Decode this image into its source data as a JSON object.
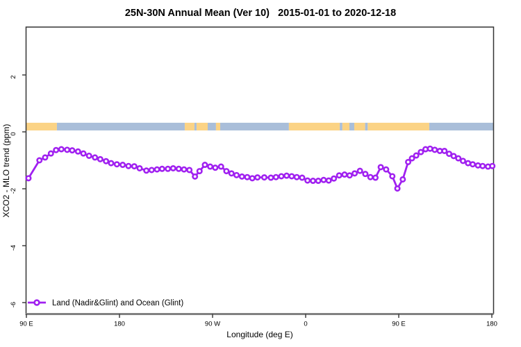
{
  "figure": {
    "title": "25N-30N Annual Mean (Ver 10)   2015-01-01 to 2020-12-18"
  },
  "chart_data": {
    "type": "line",
    "title": "25N-30N Annual Mean (Ver 10)   2015-01-01 to 2020-12-18",
    "xlabel": "Longitude (deg E)",
    "ylabel": "XCO2 - MLO trend (ppm)",
    "x_axis_note": "longitude axis runs 90E eastward wrapping the globe 1.25 times: 90E,180,90W,0,90E,180",
    "xlim_deg": [
      90,
      541.3
    ],
    "ylim": [
      -6.4,
      3.7
    ],
    "grid": false,
    "legend_position": "bottom-left-inside",
    "legend_label": "Land (Nadir&Glint) and Ocean (Glint)",
    "x_ticks": [
      {
        "deg": 90,
        "label": "90 E"
      },
      {
        "deg": 180,
        "label": "180"
      },
      {
        "deg": 270,
        "label": "90 W"
      },
      {
        "deg": 360,
        "label": "0"
      },
      {
        "deg": 450,
        "label": "90 E"
      },
      {
        "deg": 540,
        "label": "180"
      }
    ],
    "y_ticks": [
      {
        "value": 2,
        "label": "2"
      },
      {
        "value": 0,
        "label": "0"
      },
      {
        "value": -2,
        "label": "-2"
      },
      {
        "value": -4,
        "label": "-4"
      },
      {
        "value": -6,
        "label": "-6"
      }
    ],
    "colors": {
      "series": "#A020F0",
      "marker_fill": "#ffffff",
      "land": "#FBD385",
      "ocean": "#A9BED9",
      "axis_box": "#333333",
      "bottom_axis": "#808080"
    },
    "land_ocean_band": {
      "description": "land/ocean strip just above 0 line",
      "y_value_range": [
        0.05,
        0.32
      ],
      "segments": [
        {
          "from": 90,
          "to": 119.5,
          "type": "land"
        },
        {
          "from": 119.5,
          "to": 243.1,
          "type": "ocean"
        },
        {
          "from": 243.1,
          "to": 252.5,
          "type": "land"
        },
        {
          "from": 252.5,
          "to": 254.5,
          "type": "ocean"
        },
        {
          "from": 254.5,
          "to": 265.3,
          "type": "land"
        },
        {
          "from": 265.3,
          "to": 273.3,
          "type": "ocean"
        },
        {
          "from": 273.3,
          "to": 277.4,
          "type": "land"
        },
        {
          "from": 277.4,
          "to": 343.8,
          "type": "ocean"
        },
        {
          "from": 343.8,
          "to": 393.0,
          "type": "land"
        },
        {
          "from": 393.0,
          "to": 395.5,
          "type": "ocean"
        },
        {
          "from": 395.5,
          "to": 402.3,
          "type": "land"
        },
        {
          "from": 402.3,
          "to": 407.0,
          "type": "ocean"
        },
        {
          "from": 407.0,
          "to": 417.5,
          "type": "land"
        },
        {
          "from": 417.5,
          "to": 420.0,
          "type": "ocean"
        },
        {
          "from": 420.0,
          "to": 479.5,
          "type": "land"
        },
        {
          "from": 479.5,
          "to": 541.3,
          "type": "ocean"
        }
      ]
    },
    "series": [
      {
        "name": "Land (Nadir&Glint) and Ocean (Glint)",
        "marker": "open-circle",
        "points": [
          [
            92.0,
            -1.63
          ],
          [
            102.6,
            -1.0
          ],
          [
            108.1,
            -0.9
          ],
          [
            113.7,
            -0.76
          ],
          [
            118.7,
            -0.64
          ],
          [
            123.8,
            -0.61
          ],
          [
            129.4,
            -0.63
          ],
          [
            134.3,
            -0.65
          ],
          [
            139.9,
            -0.69
          ],
          [
            145.1,
            -0.76
          ],
          [
            150.6,
            -0.84
          ],
          [
            156.3,
            -0.9
          ],
          [
            161.4,
            -0.96
          ],
          [
            167.0,
            -1.03
          ],
          [
            171.9,
            -1.1
          ],
          [
            177.5,
            -1.14
          ],
          [
            183.1,
            -1.16
          ],
          [
            188.7,
            -1.2
          ],
          [
            194.3,
            -1.21
          ],
          [
            199.5,
            -1.28
          ],
          [
            206.0,
            -1.36
          ],
          [
            211.1,
            -1.34
          ],
          [
            216.3,
            -1.32
          ],
          [
            221.2,
            -1.3
          ],
          [
            226.8,
            -1.3
          ],
          [
            231.9,
            -1.28
          ],
          [
            237.3,
            -1.3
          ],
          [
            242.4,
            -1.32
          ],
          [
            247.6,
            -1.34
          ],
          [
            253.0,
            -1.57
          ],
          [
            257.4,
            -1.38
          ],
          [
            262.6,
            -1.16
          ],
          [
            267.7,
            -1.22
          ],
          [
            272.6,
            -1.26
          ],
          [
            278.2,
            -1.22
          ],
          [
            283.4,
            -1.38
          ],
          [
            288.3,
            -1.46
          ],
          [
            293.2,
            -1.52
          ],
          [
            298.4,
            -1.57
          ],
          [
            303.5,
            -1.59
          ],
          [
            308.4,
            -1.63
          ],
          [
            313.4,
            -1.6
          ],
          [
            320.0,
            -1.6
          ],
          [
            326.4,
            -1.61
          ],
          [
            331.3,
            -1.59
          ],
          [
            336.5,
            -1.56
          ],
          [
            341.6,
            -1.54
          ],
          [
            346.5,
            -1.56
          ],
          [
            351.4,
            -1.59
          ],
          [
            356.6,
            -1.61
          ],
          [
            361.8,
            -1.71
          ],
          [
            367.1,
            -1.72
          ],
          [
            372.2,
            -1.72
          ],
          [
            377.4,
            -1.69
          ],
          [
            382.3,
            -1.71
          ],
          [
            387.3,
            -1.64
          ],
          [
            392.4,
            -1.53
          ],
          [
            397.6,
            -1.5
          ],
          [
            402.5,
            -1.53
          ],
          [
            407.4,
            -1.46
          ],
          [
            412.5,
            -1.37
          ],
          [
            417.7,
            -1.48
          ],
          [
            422.6,
            -1.59
          ],
          [
            427.5,
            -1.61
          ],
          [
            432.6,
            -1.24
          ],
          [
            437.8,
            -1.32
          ],
          [
            443.8,
            -1.56
          ],
          [
            448.7,
            -1.99
          ],
          [
            453.9,
            -1.67
          ],
          [
            459.1,
            -1.06
          ],
          [
            462.8,
            -0.93
          ],
          [
            466.9,
            -0.83
          ],
          [
            471.4,
            -0.71
          ],
          [
            475.9,
            -0.61
          ],
          [
            480.3,
            -0.59
          ],
          [
            484.8,
            -0.63
          ],
          [
            489.7,
            -0.67
          ],
          [
            494.2,
            -0.67
          ],
          [
            498.7,
            -0.77
          ],
          [
            503.1,
            -0.85
          ],
          [
            507.6,
            -0.93
          ],
          [
            512.1,
            -1.02
          ],
          [
            517.0,
            -1.1
          ],
          [
            521.5,
            -1.14
          ],
          [
            526.6,
            -1.18
          ],
          [
            531.1,
            -1.2
          ],
          [
            536.3,
            -1.22
          ],
          [
            540.5,
            -1.2
          ]
        ]
      }
    ]
  }
}
